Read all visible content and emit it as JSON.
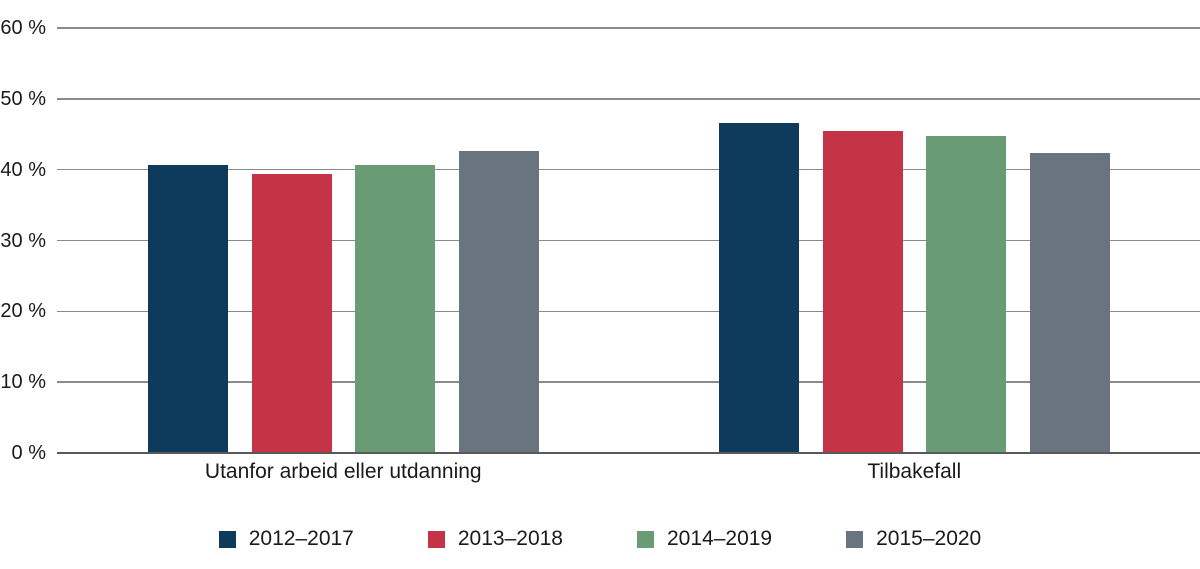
{
  "chart_data": {
    "type": "bar",
    "title": "",
    "categories": [
      "Utanfor arbeid eller utdanning",
      "Tilbakefall"
    ],
    "series": [
      {
        "name": "2012–2017",
        "color": "#0e3a5c",
        "values": [
          40.7,
          46.6
        ]
      },
      {
        "name": "2013–2018",
        "color": "#c43446",
        "values": [
          39.4,
          45.5
        ]
      },
      {
        "name": "2014–2019",
        "color": "#699c74",
        "values": [
          40.7,
          44.8
        ]
      },
      {
        "name": "2015–2020",
        "color": "#69747e",
        "values": [
          42.7,
          42.4
        ]
      }
    ],
    "xlabel": "",
    "ylabel": "",
    "ylim": [
      0,
      60
    ],
    "y_tick_values": [
      0,
      10,
      20,
      30,
      40,
      50,
      60
    ],
    "y_tick_labels": [
      "0 %",
      "10 %",
      "20 %",
      "30 %",
      "40 %",
      "50 %",
      "60 %"
    ],
    "grid": true,
    "gridline_color": "#8a8a8a",
    "axis_line_color": "#58595b",
    "text_color": "#1a1a1a",
    "legend_position": "bottom"
  }
}
